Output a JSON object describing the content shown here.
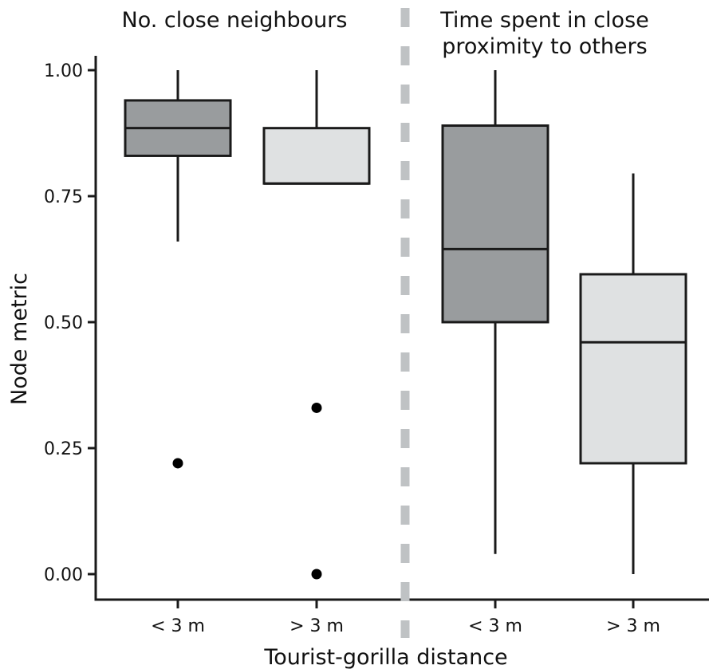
{
  "chart_data": {
    "type": "box",
    "title": "",
    "xlabel": "Tourist-gorilla distance",
    "ylabel": "Node metric",
    "ylim": [
      0,
      1.0
    ],
    "yticks": [
      "0.00",
      "0.25",
      "0.50",
      "0.75",
      "1.00"
    ],
    "panels": [
      {
        "title_lines": [
          "No. close neighbours"
        ],
        "groups": [
          {
            "category": "< 3 m",
            "fill": "#999c9e",
            "min": 0.66,
            "q1": 0.83,
            "median": 0.885,
            "q3": 0.94,
            "max": 1.0,
            "outliers": [
              0.22
            ]
          },
          {
            "category": "> 3 m",
            "fill": "#dfe1e2",
            "min": 0.775,
            "q1": 0.775,
            "median": 0.775,
            "q3": 0.885,
            "max": 1.0,
            "outliers": [
              0.33,
              0.0
            ]
          }
        ]
      },
      {
        "title_lines": [
          "Time spent in close",
          "proximity to others"
        ],
        "groups": [
          {
            "category": "< 3 m",
            "fill": "#999c9e",
            "min": 0.04,
            "q1": 0.5,
            "median": 0.645,
            "q3": 0.89,
            "max": 1.0,
            "outliers": []
          },
          {
            "category": "> 3 m",
            "fill": "#dfe1e2",
            "min": 0.0,
            "q1": 0.22,
            "median": 0.46,
            "q3": 0.595,
            "max": 0.795,
            "outliers": []
          }
        ]
      }
    ],
    "colors": {
      "dark_box": "#999c9e",
      "light_box": "#dfe1e2",
      "divider": "#bfc2c4",
      "line": "#1a1a1a"
    }
  }
}
